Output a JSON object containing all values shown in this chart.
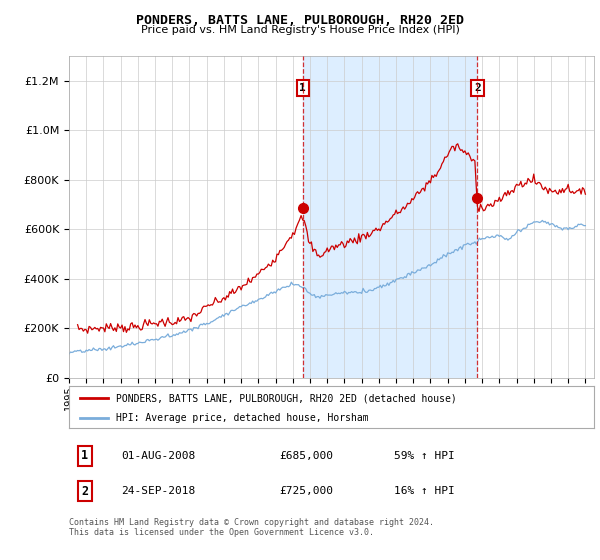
{
  "title": "PONDERS, BATTS LANE, PULBOROUGH, RH20 2ED",
  "subtitle": "Price paid vs. HM Land Registry's House Price Index (HPI)",
  "legend_line1": "PONDERS, BATTS LANE, PULBOROUGH, RH20 2ED (detached house)",
  "legend_line2": "HPI: Average price, detached house, Horsham",
  "sale1_label": "1",
  "sale1_date": "01-AUG-2008",
  "sale1_price": "£685,000",
  "sale1_hpi": "59% ↑ HPI",
  "sale1_year": 2008.58,
  "sale1_value": 685000,
  "sale2_label": "2",
  "sale2_date": "24-SEP-2018",
  "sale2_price": "£725,000",
  "sale2_hpi": "16% ↑ HPI",
  "sale2_year": 2018.73,
  "sale2_value": 725000,
  "footer": "Contains HM Land Registry data © Crown copyright and database right 2024.\nThis data is licensed under the Open Government Licence v3.0.",
  "red_color": "#cc0000",
  "blue_color": "#7aaddb",
  "plot_bg_color": "#ffffff",
  "shade_color": "#ddeeff",
  "ylim": [
    0,
    1300000
  ],
  "yticks": [
    0,
    200000,
    400000,
    600000,
    800000,
    1000000,
    1200000
  ],
  "xmin": 1995.0,
  "xmax": 2025.5
}
